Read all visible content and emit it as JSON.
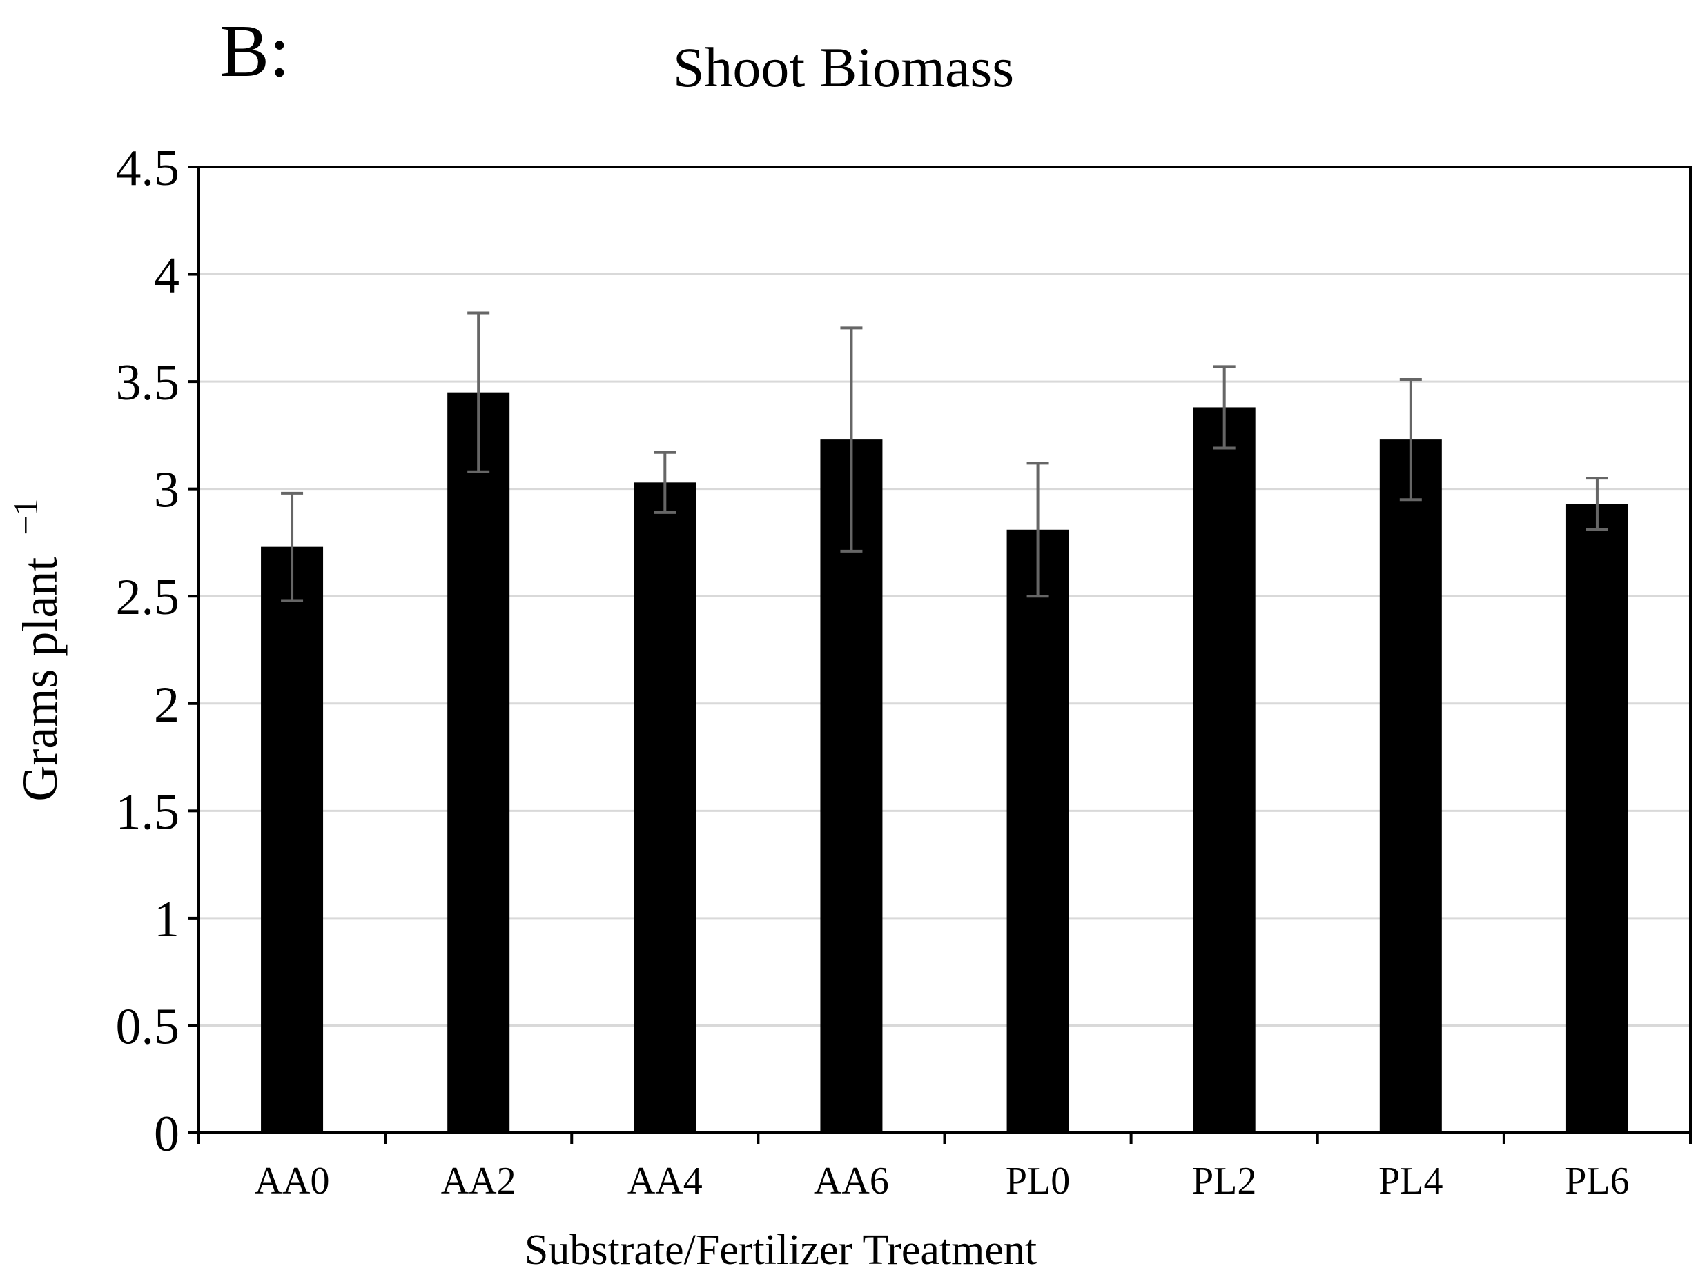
{
  "panel_label": "B:",
  "chart_data": {
    "type": "bar",
    "title": "Shoot Biomass",
    "xlabel": "Substrate/Fertilizer Treatment",
    "ylabel": "Grams plant",
    "ylabel_superscript": "−1",
    "ylim": [
      0,
      4.5
    ],
    "yticks": [
      0,
      0.5,
      1,
      1.5,
      2,
      2.5,
      3,
      3.5,
      4,
      4.5
    ],
    "ytick_labels": [
      "0",
      "0.5",
      "1",
      "1.5",
      "2",
      "2.5",
      "3",
      "3.5",
      "4",
      "4.5"
    ],
    "categories": [
      "AA0",
      "AA2",
      "AA4",
      "AA6",
      "PL0",
      "PL2",
      "PL4",
      "PL6"
    ],
    "values": [
      2.73,
      3.45,
      3.03,
      3.23,
      2.81,
      3.38,
      3.23,
      2.93
    ],
    "error": [
      0.25,
      0.37,
      0.14,
      0.52,
      0.31,
      0.19,
      0.28,
      0.12
    ],
    "grid": true,
    "bar_color": "#000000",
    "errorbar_color": "#666666",
    "grid_color": "#d9d9d9"
  }
}
